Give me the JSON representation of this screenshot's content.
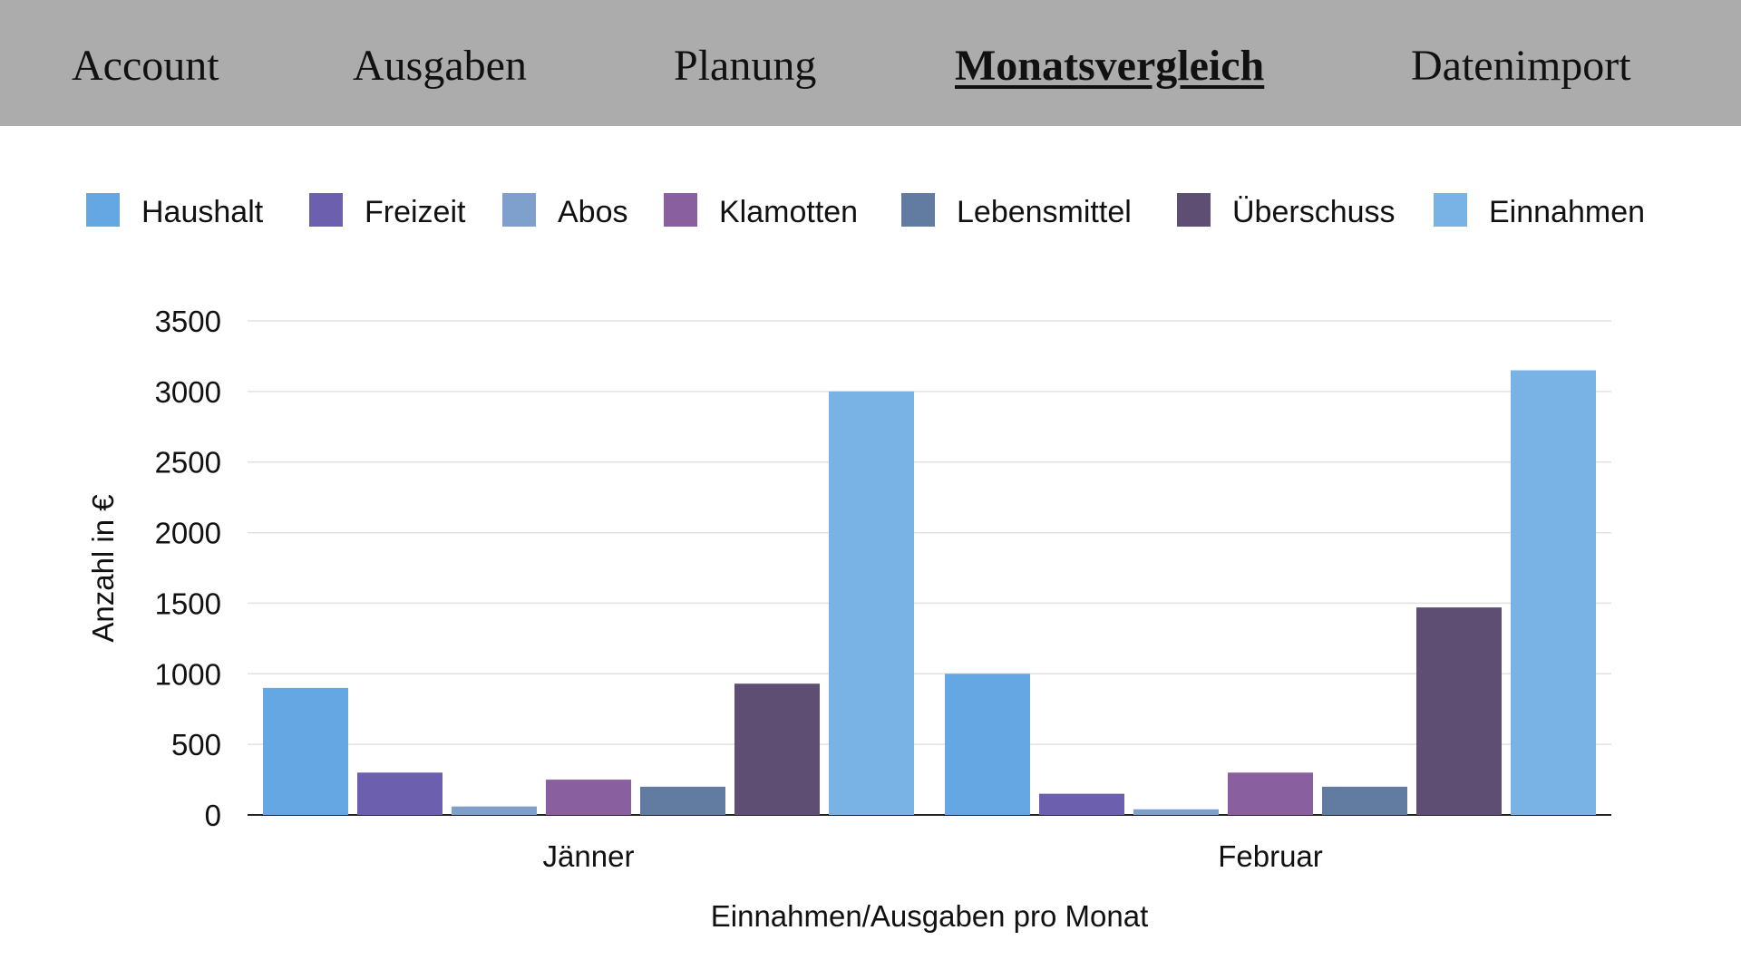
{
  "nav": {
    "items": [
      {
        "label": "Account",
        "active": false
      },
      {
        "label": "Ausgaben",
        "active": false
      },
      {
        "label": "Planung",
        "active": false
      },
      {
        "label": "Monatsvergleich",
        "active": true
      },
      {
        "label": "Datenimport",
        "active": false
      }
    ]
  },
  "chart_data": {
    "type": "bar",
    "title": "",
    "xlabel": "Einnahmen/Ausgaben pro Monat",
    "ylabel": "Anzahl in €",
    "categories": [
      "Jänner",
      "Februar"
    ],
    "ylim": [
      0,
      3500
    ],
    "yticks": [
      0,
      500,
      1000,
      1500,
      2000,
      2500,
      3000,
      3500
    ],
    "grid": true,
    "legend_position": "top",
    "series": [
      {
        "name": "Haushalt",
        "color": "#64a7e3",
        "values": [
          900,
          1000
        ]
      },
      {
        "name": "Freizeit",
        "color": "#6c5fae",
        "values": [
          300,
          150
        ]
      },
      {
        "name": "Abos",
        "color": "#7f9fcc",
        "values": [
          60,
          40
        ]
      },
      {
        "name": "Klamotten",
        "color": "#8a5f9f",
        "values": [
          250,
          300
        ]
      },
      {
        "name": "Lebensmittel",
        "color": "#627ba1",
        "values": [
          200,
          200
        ]
      },
      {
        "name": "Überschuss",
        "color": "#5e4e74",
        "values": [
          930,
          1470
        ]
      },
      {
        "name": "Einnahmen",
        "color": "#79b3e6",
        "values": [
          3000,
          3150
        ]
      }
    ]
  }
}
